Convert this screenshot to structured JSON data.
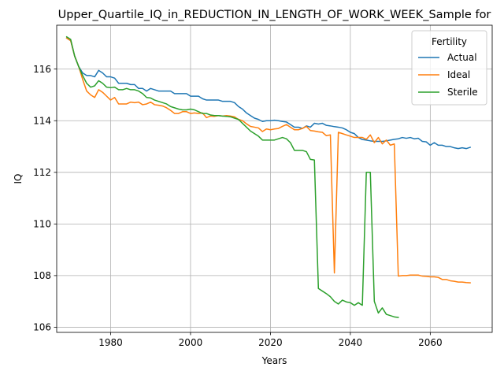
{
  "chart_data": {
    "type": "line",
    "title": "Upper_Quartile_IQ_in_REDUCTION_IN_LENGTH_OF_WORK_WEEK_Sample for",
    "xlabel": "Years",
    "ylabel": "IQ",
    "xlim": [
      1966.5,
      2075.5
    ],
    "ylim": [
      105.8,
      117.7
    ],
    "xticks": [
      1980,
      2000,
      2020,
      2040,
      2060
    ],
    "yticks": [
      106,
      108,
      110,
      112,
      114,
      116
    ],
    "grid": true,
    "legend": {
      "title": "Fertility",
      "placement": "top-right"
    },
    "series": [
      {
        "name": "Actual",
        "color": "#1f77b4",
        "points": [
          [
            1969,
            117.2
          ],
          [
            1970,
            117.1
          ],
          [
            1971,
            116.5
          ],
          [
            1972,
            116.1
          ],
          [
            1973,
            115.85
          ],
          [
            1974,
            115.75
          ],
          [
            1975,
            115.75
          ],
          [
            1976,
            115.7
          ],
          [
            1977,
            115.95
          ],
          [
            1978,
            115.85
          ],
          [
            1979,
            115.7
          ],
          [
            1980,
            115.7
          ],
          [
            1981,
            115.65
          ],
          [
            1982,
            115.45
          ],
          [
            1983,
            115.45
          ],
          [
            1984,
            115.45
          ],
          [
            1985,
            115.4
          ],
          [
            1986,
            115.4
          ],
          [
            1987,
            115.25
          ],
          [
            1988,
            115.25
          ],
          [
            1989,
            115.15
          ],
          [
            1990,
            115.25
          ],
          [
            1991,
            115.2
          ],
          [
            1992,
            115.15
          ],
          [
            1993,
            115.15
          ],
          [
            1994,
            115.15
          ],
          [
            1995,
            115.15
          ],
          [
            1996,
            115.05
          ],
          [
            1997,
            115.05
          ],
          [
            1998,
            115.05
          ],
          [
            1999,
            115.05
          ],
          [
            2000,
            114.95
          ],
          [
            2001,
            114.95
          ],
          [
            2002,
            114.95
          ],
          [
            2003,
            114.85
          ],
          [
            2004,
            114.8
          ],
          [
            2005,
            114.8
          ],
          [
            2006,
            114.8
          ],
          [
            2007,
            114.8
          ],
          [
            2008,
            114.75
          ],
          [
            2009,
            114.75
          ],
          [
            2010,
            114.75
          ],
          [
            2011,
            114.7
          ],
          [
            2012,
            114.55
          ],
          [
            2013,
            114.45
          ],
          [
            2014,
            114.3
          ],
          [
            2015,
            114.2
          ],
          [
            2016,
            114.1
          ],
          [
            2017,
            114.05
          ],
          [
            2018,
            113.97
          ],
          [
            2019,
            114.0
          ],
          [
            2020,
            114.0
          ],
          [
            2021,
            114.02
          ],
          [
            2022,
            114.0
          ],
          [
            2023,
            113.97
          ],
          [
            2024,
            113.95
          ],
          [
            2025,
            113.85
          ],
          [
            2026,
            113.75
          ],
          [
            2027,
            113.75
          ],
          [
            2028,
            113.7
          ],
          [
            2029,
            113.8
          ],
          [
            2030,
            113.75
          ],
          [
            2031,
            113.9
          ],
          [
            2032,
            113.87
          ],
          [
            2033,
            113.9
          ],
          [
            2034,
            113.82
          ],
          [
            2035,
            113.8
          ],
          [
            2036,
            113.77
          ],
          [
            2037,
            113.75
          ],
          [
            2038,
            113.72
          ],
          [
            2039,
            113.65
          ],
          [
            2040,
            113.55
          ],
          [
            2041,
            113.5
          ],
          [
            2042,
            113.35
          ],
          [
            2043,
            113.27
          ],
          [
            2044,
            113.25
          ],
          [
            2045,
            113.22
          ],
          [
            2046,
            113.2
          ],
          [
            2047,
            113.2
          ],
          [
            2048,
            113.2
          ],
          [
            2049,
            113.22
          ],
          [
            2050,
            113.25
          ],
          [
            2051,
            113.28
          ],
          [
            2052,
            113.3
          ],
          [
            2053,
            113.35
          ],
          [
            2054,
            113.32
          ],
          [
            2055,
            113.35
          ],
          [
            2056,
            113.3
          ],
          [
            2057,
            113.32
          ],
          [
            2058,
            113.2
          ],
          [
            2059,
            113.18
          ],
          [
            2060,
            113.05
          ],
          [
            2061,
            113.15
          ],
          [
            2062,
            113.05
          ],
          [
            2063,
            113.05
          ],
          [
            2064,
            113.0
          ],
          [
            2065,
            113.0
          ],
          [
            2066,
            112.95
          ],
          [
            2067,
            112.92
          ],
          [
            2068,
            112.95
          ],
          [
            2069,
            112.92
          ],
          [
            2070,
            112.97
          ]
        ]
      },
      {
        "name": "Ideal",
        "color": "#ff7f0e",
        "points": [
          [
            1969,
            117.2
          ],
          [
            1970,
            117.1
          ],
          [
            1971,
            116.5
          ],
          [
            1972,
            116.1
          ],
          [
            1973,
            115.6
          ],
          [
            1974,
            115.15
          ],
          [
            1975,
            115.0
          ],
          [
            1976,
            114.9
          ],
          [
            1977,
            115.2
          ],
          [
            1978,
            115.1
          ],
          [
            1979,
            114.95
          ],
          [
            1980,
            114.8
          ],
          [
            1981,
            114.9
          ],
          [
            1982,
            114.65
          ],
          [
            1983,
            114.65
          ],
          [
            1984,
            114.65
          ],
          [
            1985,
            114.72
          ],
          [
            1986,
            114.7
          ],
          [
            1987,
            114.72
          ],
          [
            1988,
            114.62
          ],
          [
            1989,
            114.65
          ],
          [
            1990,
            114.72
          ],
          [
            1991,
            114.62
          ],
          [
            1992,
            114.6
          ],
          [
            1993,
            114.57
          ],
          [
            1994,
            114.5
          ],
          [
            1995,
            114.4
          ],
          [
            1996,
            114.28
          ],
          [
            1997,
            114.28
          ],
          [
            1998,
            114.35
          ],
          [
            1999,
            114.35
          ],
          [
            2000,
            114.28
          ],
          [
            2001,
            114.3
          ],
          [
            2002,
            114.28
          ],
          [
            2003,
            114.3
          ],
          [
            2004,
            114.12
          ],
          [
            2005,
            114.18
          ],
          [
            2006,
            114.17
          ],
          [
            2007,
            114.2
          ],
          [
            2008,
            114.18
          ],
          [
            2009,
            114.2
          ],
          [
            2010,
            114.18
          ],
          [
            2011,
            114.15
          ],
          [
            2012,
            114.05
          ],
          [
            2013,
            114.0
          ],
          [
            2014,
            113.88
          ],
          [
            2015,
            113.78
          ],
          [
            2016,
            113.75
          ],
          [
            2017,
            113.72
          ],
          [
            2018,
            113.58
          ],
          [
            2019,
            113.68
          ],
          [
            2020,
            113.65
          ],
          [
            2021,
            113.68
          ],
          [
            2022,
            113.7
          ],
          [
            2023,
            113.78
          ],
          [
            2024,
            113.85
          ],
          [
            2025,
            113.75
          ],
          [
            2026,
            113.65
          ],
          [
            2027,
            113.65
          ],
          [
            2028,
            113.7
          ],
          [
            2029,
            113.78
          ],
          [
            2030,
            113.62
          ],
          [
            2031,
            113.6
          ],
          [
            2032,
            113.57
          ],
          [
            2033,
            113.55
          ],
          [
            2034,
            113.42
          ],
          [
            2035,
            113.45
          ],
          [
            2036,
            108.1
          ],
          [
            2037,
            113.55
          ],
          [
            2038,
            113.5
          ],
          [
            2039,
            113.45
          ],
          [
            2040,
            113.4
          ],
          [
            2041,
            113.35
          ],
          [
            2042,
            113.35
          ],
          [
            2043,
            113.35
          ],
          [
            2044,
            113.28
          ],
          [
            2045,
            113.45
          ],
          [
            2046,
            113.15
          ],
          [
            2047,
            113.35
          ],
          [
            2048,
            113.1
          ],
          [
            2049,
            113.25
          ],
          [
            2050,
            113.05
          ],
          [
            2051,
            113.1
          ],
          [
            2052,
            107.98
          ],
          [
            2053,
            108.0
          ],
          [
            2054,
            108.0
          ],
          [
            2055,
            108.02
          ],
          [
            2056,
            108.02
          ],
          [
            2057,
            108.02
          ],
          [
            2058,
            107.98
          ],
          [
            2059,
            107.97
          ],
          [
            2060,
            107.95
          ],
          [
            2061,
            107.95
          ],
          [
            2062,
            107.93
          ],
          [
            2063,
            107.85
          ],
          [
            2064,
            107.85
          ],
          [
            2065,
            107.8
          ],
          [
            2066,
            107.78
          ],
          [
            2067,
            107.75
          ],
          [
            2068,
            107.75
          ],
          [
            2069,
            107.73
          ],
          [
            2070,
            107.72
          ]
        ]
      },
      {
        "name": "Sterile",
        "color": "#2ca02c",
        "points": [
          [
            1969,
            117.25
          ],
          [
            1970,
            117.15
          ],
          [
            1971,
            116.5
          ],
          [
            1972,
            116.1
          ],
          [
            1973,
            115.75
          ],
          [
            1974,
            115.45
          ],
          [
            1975,
            115.3
          ],
          [
            1976,
            115.35
          ],
          [
            1977,
            115.55
          ],
          [
            1978,
            115.45
          ],
          [
            1979,
            115.3
          ],
          [
            1980,
            115.28
          ],
          [
            1981,
            115.3
          ],
          [
            1982,
            115.2
          ],
          [
            1983,
            115.2
          ],
          [
            1984,
            115.25
          ],
          [
            1985,
            115.2
          ],
          [
            1986,
            115.2
          ],
          [
            1987,
            115.15
          ],
          [
            1988,
            115.05
          ],
          [
            1989,
            114.9
          ],
          [
            1990,
            114.88
          ],
          [
            1991,
            114.8
          ],
          [
            1992,
            114.75
          ],
          [
            1993,
            114.7
          ],
          [
            1994,
            114.65
          ],
          [
            1995,
            114.55
          ],
          [
            1996,
            114.5
          ],
          [
            1997,
            114.45
          ],
          [
            1998,
            114.42
          ],
          [
            1999,
            114.42
          ],
          [
            2000,
            114.45
          ],
          [
            2001,
            114.42
          ],
          [
            2002,
            114.35
          ],
          [
            2003,
            114.28
          ],
          [
            2004,
            114.28
          ],
          [
            2005,
            114.22
          ],
          [
            2006,
            114.2
          ],
          [
            2007,
            114.2
          ],
          [
            2008,
            114.18
          ],
          [
            2009,
            114.17
          ],
          [
            2010,
            114.15
          ],
          [
            2011,
            114.1
          ],
          [
            2012,
            114.05
          ],
          [
            2013,
            113.9
          ],
          [
            2014,
            113.75
          ],
          [
            2015,
            113.6
          ],
          [
            2016,
            113.5
          ],
          [
            2017,
            113.4
          ],
          [
            2018,
            113.25
          ],
          [
            2019,
            113.25
          ],
          [
            2020,
            113.25
          ],
          [
            2021,
            113.25
          ],
          [
            2022,
            113.3
          ],
          [
            2023,
            113.35
          ],
          [
            2024,
            113.3
          ],
          [
            2025,
            113.15
          ],
          [
            2026,
            112.85
          ],
          [
            2027,
            112.85
          ],
          [
            2028,
            112.85
          ],
          [
            2029,
            112.8
          ],
          [
            2030,
            112.5
          ],
          [
            2031,
            112.48
          ],
          [
            2032,
            107.5
          ],
          [
            2033,
            107.4
          ],
          [
            2034,
            107.3
          ],
          [
            2035,
            107.18
          ],
          [
            2036,
            107.0
          ],
          [
            2037,
            106.9
          ],
          [
            2038,
            107.05
          ],
          [
            2039,
            106.98
          ],
          [
            2040,
            106.95
          ],
          [
            2041,
            106.85
          ],
          [
            2042,
            106.95
          ],
          [
            2043,
            106.85
          ],
          [
            2044,
            112.0
          ],
          [
            2045,
            112.0
          ],
          [
            2046,
            107.0
          ],
          [
            2047,
            106.55
          ],
          [
            2048,
            106.75
          ],
          [
            2049,
            106.5
          ],
          [
            2050,
            106.45
          ],
          [
            2051,
            106.4
          ],
          [
            2052,
            106.38
          ]
        ]
      }
    ]
  }
}
